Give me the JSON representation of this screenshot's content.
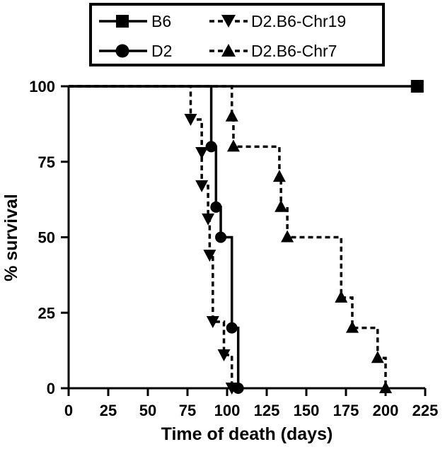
{
  "chart_data": {
    "type": "line",
    "subtype": "kaplan-meier step",
    "title": "",
    "xlabel": "Time of death (days)",
    "ylabel": "% survival",
    "xlim": [
      0,
      225
    ],
    "ylim": [
      0,
      100
    ],
    "xticks": [
      0,
      25,
      50,
      75,
      100,
      125,
      150,
      175,
      200,
      225
    ],
    "yticks": [
      0,
      25,
      50,
      75,
      100
    ],
    "grid": false,
    "legend_position": "top",
    "series": [
      {
        "name": "B6",
        "line_style": "solid",
        "marker": "square",
        "steps": [
          [
            0,
            100
          ],
          [
            220,
            100
          ]
        ],
        "markers": [
          [
            220,
            100
          ]
        ]
      },
      {
        "name": "D2",
        "line_style": "solid",
        "marker": "circle",
        "steps": [
          [
            0,
            100
          ],
          [
            90,
            100
          ],
          [
            90,
            80
          ],
          [
            93,
            80
          ],
          [
            93,
            60
          ],
          [
            96,
            60
          ],
          [
            96,
            50
          ],
          [
            103,
            50
          ],
          [
            103,
            20
          ],
          [
            107,
            20
          ],
          [
            107,
            0
          ]
        ],
        "markers": [
          [
            90,
            80
          ],
          [
            93,
            60
          ],
          [
            96,
            50
          ],
          [
            103,
            20
          ],
          [
            107,
            0
          ]
        ]
      },
      {
        "name": "D2.B6-Chr19",
        "line_style": "dashed",
        "marker": "triangle-down",
        "steps": [
          [
            0,
            100
          ],
          [
            77,
            100
          ],
          [
            77,
            89
          ],
          [
            84,
            89
          ],
          [
            84,
            78
          ],
          [
            84,
            67
          ],
          [
            88,
            67
          ],
          [
            88,
            56
          ],
          [
            89,
            56
          ],
          [
            89,
            44
          ],
          [
            91,
            44
          ],
          [
            91,
            22
          ],
          [
            98,
            22
          ],
          [
            98,
            11
          ],
          [
            103,
            11
          ],
          [
            103,
            0
          ]
        ],
        "markers": [
          [
            77,
            89
          ],
          [
            84,
            78
          ],
          [
            84,
            67
          ],
          [
            88,
            56
          ],
          [
            89,
            44
          ],
          [
            91,
            22
          ],
          [
            98,
            11
          ],
          [
            103,
            0
          ]
        ]
      },
      {
        "name": "D2.B6-Chr7",
        "line_style": "dashed",
        "marker": "triangle-up",
        "steps": [
          [
            0,
            100
          ],
          [
            103,
            100
          ],
          [
            103,
            90
          ],
          [
            104,
            90
          ],
          [
            104,
            80
          ],
          [
            133,
            80
          ],
          [
            133,
            70
          ],
          [
            134,
            70
          ],
          [
            134,
            60
          ],
          [
            138,
            60
          ],
          [
            138,
            50
          ],
          [
            172,
            50
          ],
          [
            172,
            30
          ],
          [
            179,
            30
          ],
          [
            179,
            20
          ],
          [
            195,
            20
          ],
          [
            195,
            10
          ],
          [
            200,
            10
          ],
          [
            200,
            0
          ]
        ],
        "markers": [
          [
            103,
            90
          ],
          [
            104,
            80
          ],
          [
            133,
            70
          ],
          [
            134,
            60
          ],
          [
            138,
            50
          ],
          [
            172,
            30
          ],
          [
            179,
            20
          ],
          [
            195,
            10
          ],
          [
            200,
            0
          ]
        ]
      }
    ]
  }
}
